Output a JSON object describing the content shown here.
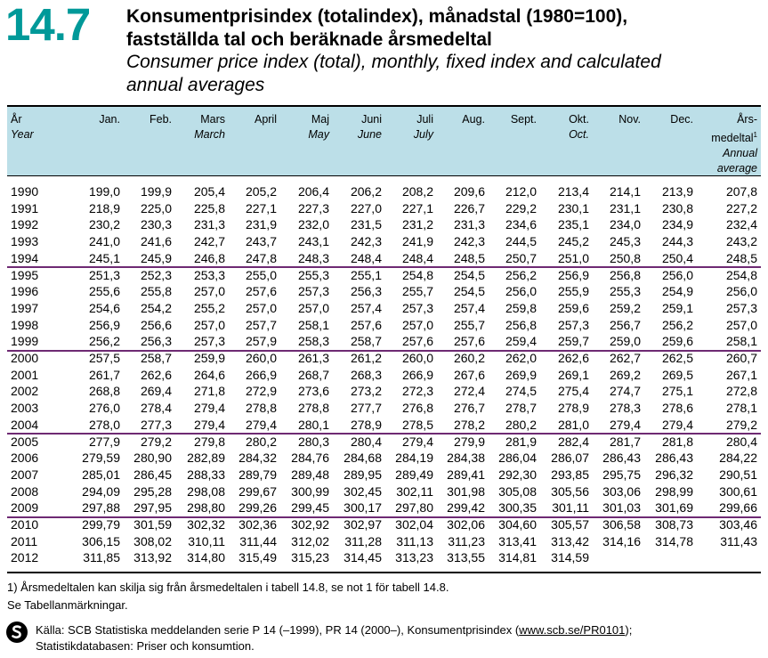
{
  "header": {
    "table_number": "14.7",
    "title_sv_line1": "Konsumentprisindex (totalindex), månadstal (1980=100),",
    "title_sv_line2": "fastställda tal och beräknade årsmedeltal",
    "title_en_line1": "Consumer price index (total), monthly, fixed index and calculated",
    "title_en_line2": "annual averages"
  },
  "columns": [
    {
      "sv": "Jan.",
      "en": ""
    },
    {
      "sv": "Feb.",
      "en": ""
    },
    {
      "sv": "Mars",
      "en": "March"
    },
    {
      "sv": "April",
      "en": ""
    },
    {
      "sv": "Maj",
      "en": "May"
    },
    {
      "sv": "Juni",
      "en": "June"
    },
    {
      "sv": "Juli",
      "en": "July"
    },
    {
      "sv": "Aug.",
      "en": ""
    },
    {
      "sv": "Sept.",
      "en": ""
    },
    {
      "sv": "Okt.",
      "en": "Oct."
    },
    {
      "sv": "Nov.",
      "en": ""
    },
    {
      "sv": "Dec.",
      "en": ""
    }
  ],
  "year_header": {
    "sv": "År",
    "en": "Year"
  },
  "annual_header": {
    "line1": "Års-",
    "line2": "medeltal",
    "sup": "1",
    "en1": "Annual",
    "en2": "average"
  },
  "rows": [
    {
      "year": "1990",
      "values": [
        "199,0",
        "199,9",
        "205,4",
        "205,2",
        "206,4",
        "206,2",
        "208,2",
        "209,6",
        "212,0",
        "213,4",
        "214,1",
        "213,9"
      ],
      "annual": "207,8"
    },
    {
      "year": "1991",
      "values": [
        "218,9",
        "225,0",
        "225,8",
        "227,1",
        "227,3",
        "227,0",
        "227,1",
        "226,7",
        "229,2",
        "230,1",
        "231,1",
        "230,8"
      ],
      "annual": "227,2"
    },
    {
      "year": "1992",
      "values": [
        "230,2",
        "230,3",
        "231,3",
        "231,9",
        "232,0",
        "231,5",
        "231,2",
        "231,3",
        "234,6",
        "235,1",
        "234,0",
        "234,9"
      ],
      "annual": "232,4"
    },
    {
      "year": "1993",
      "values": [
        "241,0",
        "241,6",
        "242,7",
        "243,7",
        "243,1",
        "242,3",
        "241,9",
        "242,3",
        "244,5",
        "245,2",
        "245,3",
        "244,3"
      ],
      "annual": "243,2"
    },
    {
      "year": "1994",
      "values": [
        "245,1",
        "245,9",
        "246,8",
        "247,8",
        "248,3",
        "248,4",
        "248,4",
        "248,5",
        "250,7",
        "251,0",
        "250,8",
        "250,4"
      ],
      "annual": "248,5"
    },
    {
      "year": "1995",
      "values": [
        "251,3",
        "252,3",
        "253,3",
        "255,0",
        "255,3",
        "255,1",
        "254,8",
        "254,5",
        "256,2",
        "256,9",
        "256,8",
        "256,0"
      ],
      "annual": "254,8"
    },
    {
      "year": "1996",
      "values": [
        "255,6",
        "255,8",
        "257,0",
        "257,6",
        "257,3",
        "256,3",
        "255,7",
        "254,5",
        "256,0",
        "255,9",
        "255,3",
        "254,9"
      ],
      "annual": "256,0"
    },
    {
      "year": "1997",
      "values": [
        "254,6",
        "254,2",
        "255,2",
        "257,0",
        "257,0",
        "257,4",
        "257,3",
        "257,4",
        "259,8",
        "259,6",
        "259,2",
        "259,1"
      ],
      "annual": "257,3"
    },
    {
      "year": "1998",
      "values": [
        "256,9",
        "256,6",
        "257,0",
        "257,7",
        "258,1",
        "257,6",
        "257,0",
        "255,7",
        "256,8",
        "257,3",
        "256,7",
        "256,2"
      ],
      "annual": "257,0"
    },
    {
      "year": "1999",
      "values": [
        "256,2",
        "256,3",
        "257,3",
        "257,9",
        "258,3",
        "258,7",
        "257,6",
        "257,6",
        "259,4",
        "259,7",
        "259,0",
        "259,6"
      ],
      "annual": "258,1"
    },
    {
      "year": "2000",
      "values": [
        "257,5",
        "258,7",
        "259,9",
        "260,0",
        "261,3",
        "261,2",
        "260,0",
        "260,2",
        "262,0",
        "262,6",
        "262,7",
        "262,5"
      ],
      "annual": "260,7"
    },
    {
      "year": "2001",
      "values": [
        "261,7",
        "262,6",
        "264,6",
        "266,9",
        "268,7",
        "268,3",
        "266,9",
        "267,6",
        "269,9",
        "269,1",
        "269,2",
        "269,5"
      ],
      "annual": "267,1"
    },
    {
      "year": "2002",
      "values": [
        "268,8",
        "269,4",
        "271,8",
        "272,9",
        "273,6",
        "273,2",
        "272,3",
        "272,4",
        "274,5",
        "275,4",
        "274,7",
        "275,1"
      ],
      "annual": "272,8"
    },
    {
      "year": "2003",
      "values": [
        "276,0",
        "278,4",
        "279,4",
        "278,8",
        "278,8",
        "277,7",
        "276,8",
        "276,7",
        "278,7",
        "278,9",
        "278,3",
        "278,6"
      ],
      "annual": "278,1"
    },
    {
      "year": "2004",
      "values": [
        "278,0",
        "277,3",
        "279,4",
        "279,4",
        "280,1",
        "278,9",
        "278,5",
        "278,2",
        "280,2",
        "281,0",
        "279,4",
        "279,4"
      ],
      "annual": "279,2"
    },
    {
      "year": "2005",
      "values": [
        "277,9",
        "279,2",
        "279,8",
        "280,2",
        "280,3",
        "280,4",
        "279,4",
        "279,9",
        "281,9",
        "282,4",
        "281,7",
        "281,8"
      ],
      "annual": "280,4"
    },
    {
      "year": "2006",
      "values": [
        "279,59",
        "280,90",
        "282,89",
        "284,32",
        "284,76",
        "284,68",
        "284,19",
        "284,38",
        "286,04",
        "286,07",
        "286,43",
        "286,43"
      ],
      "annual": "284,22"
    },
    {
      "year": "2007",
      "values": [
        "285,01",
        "286,45",
        "288,33",
        "289,79",
        "289,48",
        "289,95",
        "289,49",
        "289,41",
        "292,30",
        "293,85",
        "295,75",
        "296,32"
      ],
      "annual": "290,51"
    },
    {
      "year": "2008",
      "values": [
        "294,09",
        "295,28",
        "298,08",
        "299,67",
        "300,99",
        "302,45",
        "302,11",
        "301,98",
        "305,08",
        "305,56",
        "303,06",
        "298,99"
      ],
      "annual": "300,61"
    },
    {
      "year": "2009",
      "values": [
        "297,88",
        "297,95",
        "298,80",
        "299,26",
        "299,45",
        "300,17",
        "297,80",
        "299,42",
        "300,35",
        "301,11",
        "301,03",
        "301,69"
      ],
      "annual": "299,66"
    },
    {
      "year": "2010",
      "values": [
        "299,79",
        "301,59",
        "302,32",
        "302,36",
        "302,92",
        "302,97",
        "302,04",
        "302,06",
        "304,60",
        "305,57",
        "306,58",
        "308,73"
      ],
      "annual": "303,46"
    },
    {
      "year": "2011",
      "values": [
        "306,15",
        "308,02",
        "310,11",
        "311,44",
        "312,02",
        "311,28",
        "311,13",
        "311,23",
        "313,41",
        "313,42",
        "314,16",
        "314,78"
      ],
      "annual": "311,43"
    },
    {
      "year": "2012",
      "values": [
        "311,85",
        "313,92",
        "314,80",
        "315,49",
        "315,23",
        "314,45",
        "313,23",
        "313,55",
        "314,81",
        "314,59",
        "",
        ""
      ],
      "annual": ""
    }
  ],
  "footnotes": {
    "note1": "1) Årsmedeltalen kan skilja sig från årsmedeltalen i tabell 14.8, se not 1 för tabell 14.8.",
    "note2": "Se Tabellanmärkningar.",
    "source_a": "Källa: SCB Statistiska meddelanden serie P 14 (–1999), PR 14 (2000–), Konsumentprisindex (",
    "source_link": "www.scb.se/PR0101",
    "source_b": ");",
    "source_line2": "Statistikdatabasen: Priser och konsumtion."
  },
  "colors": {
    "accent": "#009999",
    "header_band": "#bcdfe8",
    "separator": "#6e2a73"
  }
}
